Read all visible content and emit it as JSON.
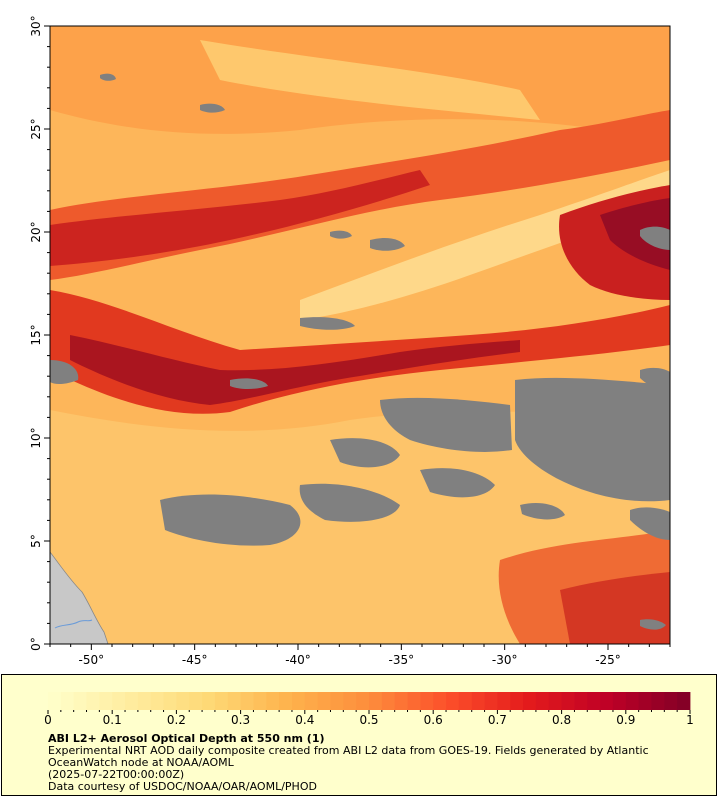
{
  "map": {
    "lon_range": [
      -52,
      -22
    ],
    "lat_range": [
      0,
      30
    ],
    "lon_ticks": [
      -50,
      -45,
      -40,
      -35,
      -30,
      -25
    ],
    "lon_tick_labels": [
      "-50°",
      "-45°",
      "-40°",
      "-35°",
      "-30°",
      "-25°"
    ],
    "lat_ticks": [
      0,
      5,
      10,
      15,
      20,
      25,
      30
    ],
    "lat_tick_labels": [
      "0°",
      "5°",
      "10°",
      "15°",
      "20°",
      "25°",
      "30°"
    ],
    "missing_data_color": "#808080",
    "land_color": "#c8c8c8"
  },
  "colorbar": {
    "min": 0,
    "max": 1,
    "tick_values": [
      0,
      0.1,
      0.2,
      0.3,
      0.4,
      0.5,
      0.6,
      0.7,
      0.8,
      0.9,
      1
    ],
    "tick_labels": [
      "0",
      "0.1",
      "0.2",
      "0.3",
      "0.4",
      "0.5",
      "0.6",
      "0.7",
      "0.8",
      "0.9",
      "1"
    ],
    "colors": [
      "#ffffcc",
      "#ffeda0",
      "#fed976",
      "#feb24c",
      "#fd8d3c",
      "#fc4e2a",
      "#e31a1c",
      "#bd0026",
      "#800026"
    ]
  },
  "legend": {
    "title": "ABI L2+ Aerosol Optical Depth at 550 nm (1)",
    "description": "Experimental NRT AOD daily composite created from ABI L2 data from GOES-19. Fields generated by Atlantic OceanWatch node at NOAA/AOML",
    "timestamp": "(2025-07-22T00:00:00Z)",
    "credit": "Data courtesy of USDOC/NOAA/OAR/AOML/PHOD"
  }
}
